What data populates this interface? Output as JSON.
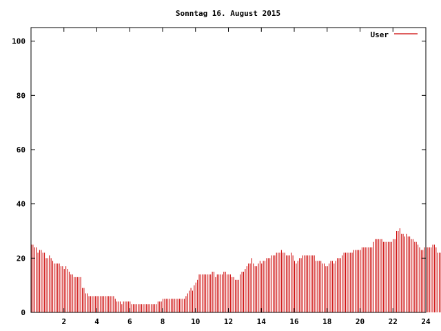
{
  "chart_data": {
    "type": "bar",
    "title": "Sonntag 16. August 2015",
    "xlabel": "",
    "ylabel": "",
    "xlim": [
      0,
      24
    ],
    "ylim": [
      0,
      105
    ],
    "grid": false,
    "legend_position": "top-right",
    "x_ticks": [
      2,
      4,
      6,
      8,
      10,
      12,
      14,
      16,
      18,
      20,
      22,
      24
    ],
    "y_ticks": [
      0,
      20,
      40,
      60,
      80,
      100
    ],
    "bar_color": "#cc0000",
    "series": [
      {
        "name": "User",
        "x_step_minutes": 6,
        "values": [
          25,
          25,
          24,
          24,
          22,
          23,
          23,
          22,
          22,
          20,
          20,
          21,
          20,
          19,
          18,
          18,
          18,
          18,
          17,
          17,
          16,
          17,
          16,
          15,
          14,
          14,
          13,
          13,
          13,
          13,
          13,
          9,
          9,
          7,
          7,
          6,
          6,
          6,
          6,
          6,
          6,
          6,
          6,
          6,
          6,
          6,
          6,
          6,
          6,
          6,
          6,
          5,
          4,
          4,
          4,
          3,
          4,
          4,
          4,
          4,
          4,
          3,
          3,
          3,
          3,
          3,
          3,
          3,
          3,
          3,
          3,
          3,
          3,
          3,
          3,
          3,
          3,
          4,
          4,
          4,
          5,
          5,
          5,
          5,
          5,
          5,
          5,
          5,
          5,
          5,
          5,
          5,
          5,
          5,
          6,
          7,
          8,
          9,
          8,
          10,
          11,
          12,
          14,
          14,
          14,
          14,
          14,
          14,
          14,
          14,
          15,
          15,
          13,
          14,
          14,
          14,
          14,
          15,
          15,
          14,
          14,
          14,
          13,
          13,
          12,
          12,
          12,
          14,
          15,
          15,
          16,
          17,
          18,
          18,
          20,
          18,
          17,
          17,
          18,
          19,
          18,
          19,
          19,
          20,
          20,
          20,
          21,
          21,
          21,
          22,
          22,
          22,
          23,
          22,
          22,
          21,
          21,
          21,
          22,
          21,
          19,
          18,
          19,
          20,
          20,
          21,
          21,
          21,
          21,
          21,
          21,
          21,
          21,
          19,
          19,
          19,
          19,
          18,
          18,
          17,
          17,
          18,
          19,
          19,
          18,
          19,
          20,
          20,
          20,
          21,
          22,
          22,
          22,
          22,
          22,
          22,
          23,
          23,
          23,
          23,
          23,
          24,
          24,
          24,
          24,
          24,
          24,
          24,
          26,
          27,
          27,
          27,
          27,
          27,
          26,
          26,
          26,
          26,
          26,
          26,
          27,
          27,
          30,
          30,
          31,
          29,
          29,
          28,
          29,
          28,
          28,
          27,
          27,
          26,
          26,
          25,
          24,
          23,
          23,
          24,
          24,
          24,
          24,
          24,
          25,
          25,
          24,
          22,
          22,
          22,
          22,
          23,
          23,
          24,
          25,
          23,
          23,
          23,
          23,
          22,
          22,
          23,
          21,
          20,
          21,
          21,
          20,
          20,
          21,
          21,
          20
        ]
      }
    ]
  }
}
